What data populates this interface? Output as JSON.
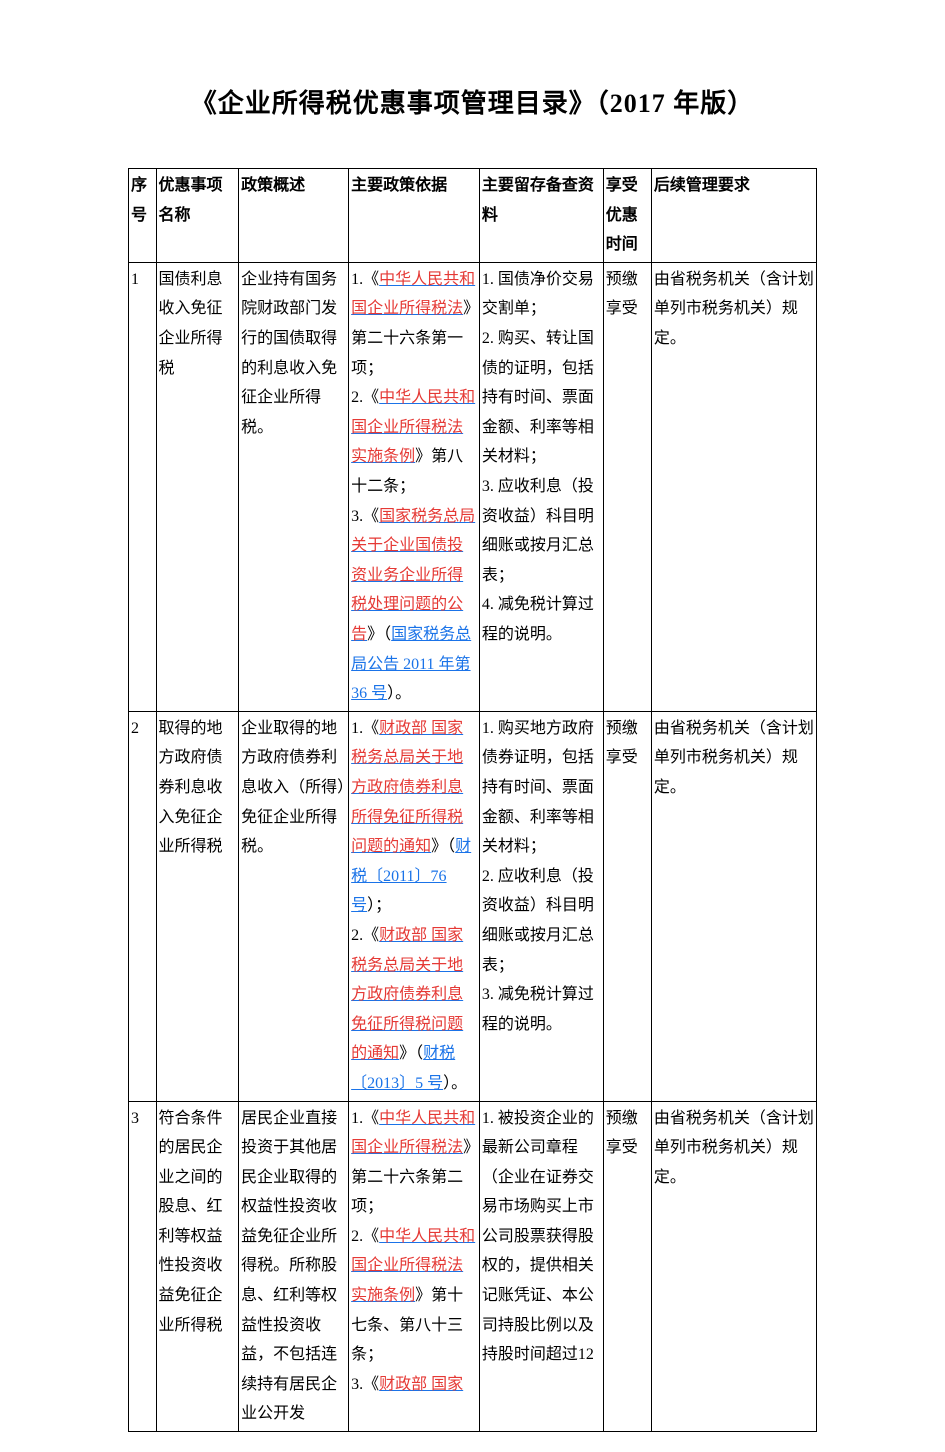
{
  "title": "《企业所得税优惠事项管理目录》（2017 年版）",
  "colors": {
    "text": "#000000",
    "link_red": "#e53935",
    "underline_blue": "#1a73e8",
    "background": "#ffffff",
    "border": "#000000"
  },
  "typography": {
    "body_font": "SimSun",
    "body_size_pt": 12,
    "title_size_pt": 20,
    "title_weight": "bold"
  },
  "columns": [
    {
      "key": "idx",
      "label": "序号",
      "width_pct": 4
    },
    {
      "key": "name",
      "label": "优惠事项名称",
      "width_pct": 12
    },
    {
      "key": "summary",
      "label": "政策概述",
      "width_pct": 16
    },
    {
      "key": "basis",
      "label": "主要政策依据",
      "width_pct": 19
    },
    {
      "key": "docs",
      "label": "主要留存备查资料",
      "width_pct": 18
    },
    {
      "key": "time",
      "label": "享受优惠时间",
      "width_pct": 7
    },
    {
      "key": "follow",
      "label": "后续管理要求",
      "width_pct": 24
    }
  ],
  "rows": [
    {
      "idx": "1",
      "name": "国债利息收入免征企业所得税",
      "summary": "企业持有国务院财政部门发行的国债取得的利息收入免征企业所得税。",
      "basis": [
        {
          "t": "1.《"
        },
        {
          "t": "中华人民共和国企业所得税法",
          "style": "lnk"
        },
        {
          "t": "》第二十六条第一项；"
        },
        {
          "t": "\n2.《"
        },
        {
          "t": "中华人民共和国企业所得税法实施条例",
          "style": "lnk"
        },
        {
          "t": "》第八十二条；"
        },
        {
          "t": "\n3.《"
        },
        {
          "t": "国家税务总局关于企业国债投资业务企业所得税处理问题的公告",
          "style": "lnk"
        },
        {
          "t": "》（"
        },
        {
          "t": "国家税务总局公告 2011 年第 36 号",
          "style": "lnk2"
        },
        {
          "t": "）。"
        }
      ],
      "docs": "1. 国债净价交易交割单；\n2. 购买、转让国债的证明，包括持有时间、票面金额、利率等相关材料；\n3. 应收利息（投资收益）科目明细账或按月汇总表；\n4. 减免税计算过程的说明。",
      "time": "预缴享受",
      "follow": "由省税务机关（含计划单列市税务机关）规定。"
    },
    {
      "idx": "2",
      "name": "取得的地方政府债券利息收入免征企业所得税",
      "summary": "企业取得的地方政府债券利息收入（所得）免征企业所得税。",
      "basis": [
        {
          "t": "1.《"
        },
        {
          "t": "财政部 国家税务总局关于地方政府债券利息所得免征所得税问题的通知",
          "style": "lnk"
        },
        {
          "t": "》（"
        },
        {
          "t": "财税〔2011〕76 号",
          "style": "lnk2"
        },
        {
          "t": "）；"
        },
        {
          "t": "\n2.《"
        },
        {
          "t": "财政部 国家税务总局关于地方政府债券利息免征所得税问题的通知",
          "style": "lnk"
        },
        {
          "t": "》（"
        },
        {
          "t": "财税〔2013〕5 号",
          "style": "lnk2"
        },
        {
          "t": "）。"
        }
      ],
      "docs": "1. 购买地方政府债券证明，包括持有时间、票面金额、利率等相关材料；\n2. 应收利息（投资收益）科目明细账或按月汇总表；\n3. 减免税计算过程的说明。",
      "time": "预缴享受",
      "follow": "由省税务机关（含计划单列市税务机关）规定。"
    },
    {
      "idx": "3",
      "name": "符合条件的居民企业之间的股息、红利等权益性投资收益免征企业所得税",
      "summary": "居民企业直接投资于其他居民企业取得的权益性投资收益免征企业所得税。所称股息、红利等权益性投资收益，不包括连续持有居民企业公开发",
      "basis": [
        {
          "t": "1.《"
        },
        {
          "t": "中华人民共和国企业所得税法",
          "style": "lnk"
        },
        {
          "t": "》第二十六条第二项；"
        },
        {
          "t": "\n2.《"
        },
        {
          "t": "中华人民共和国企业所得税法实施条例",
          "style": "lnk"
        },
        {
          "t": "》第十七条、第八十三条；"
        },
        {
          "t": "\n3.《"
        },
        {
          "t": "财政部 国家",
          "style": "lnk"
        }
      ],
      "docs": "1. 被投资企业的最新公司章程（企业在证券交易市场购买上市公司股票获得股权的，提供相关记账凭证、本公司持股比例以及持股时间超过12",
      "time": "预缴享受",
      "follow": "由省税务机关（含计划单列市税务机关）规定。"
    }
  ]
}
